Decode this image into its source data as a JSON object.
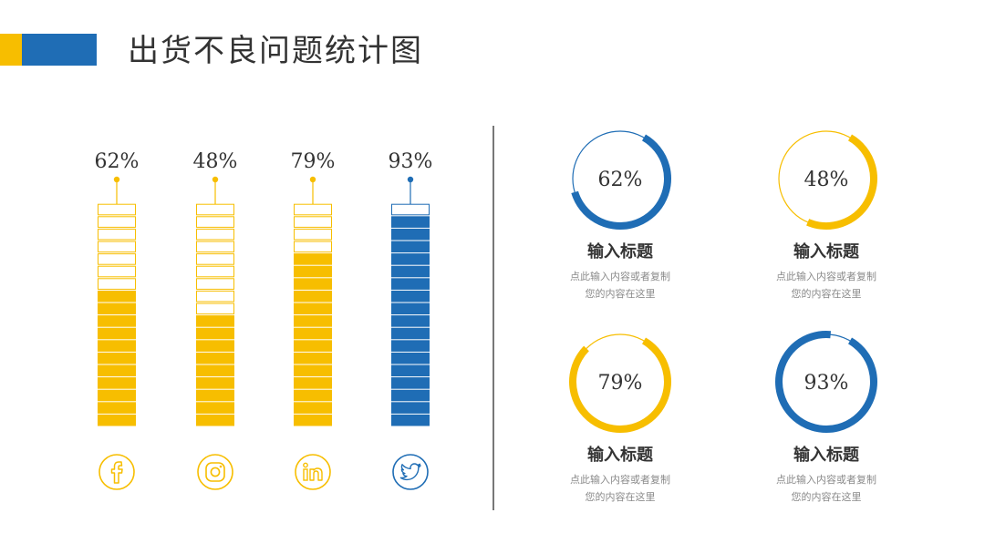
{
  "title": "出货不良问题统计图",
  "colors": {
    "yellow": "#F7BE00",
    "blue": "#1F6DB5"
  },
  "chart_data": {
    "type": "bar",
    "categories": [
      "facebook",
      "instagram",
      "linkedin",
      "twitter"
    ],
    "values": [
      62,
      48,
      79,
      93
    ],
    "labels": [
      "62%",
      "48%",
      "79%",
      "93%"
    ],
    "unit": "%",
    "ylim": [
      0,
      100
    ],
    "segments_per_bar": 18,
    "bar_colors": [
      "#F7BE00",
      "#F7BE00",
      "#F7BE00",
      "#1F6DB5"
    ],
    "icons": [
      "facebook-icon",
      "instagram-icon",
      "linkedin-icon",
      "twitter-icon"
    ]
  },
  "cards": [
    {
      "value": 62,
      "label": "62%",
      "color": "#1F6DB5",
      "title": "输入标题",
      "desc_line1": "点此输入内容或者复制",
      "desc_line2": "您的内容在这里"
    },
    {
      "value": 48,
      "label": "48%",
      "color": "#F7BE00",
      "title": "输入标题",
      "desc_line1": "点此输入内容或者复制",
      "desc_line2": "您的内容在这里"
    },
    {
      "value": 79,
      "label": "79%",
      "color": "#F7BE00",
      "title": "输入标题",
      "desc_line1": "点此输入内容或者复制",
      "desc_line2": "您的内容在这里"
    },
    {
      "value": 93,
      "label": "93%",
      "color": "#1F6DB5",
      "title": "输入标题",
      "desc_line1": "点此输入内容或者复制",
      "desc_line2": "您的内容在这里"
    }
  ]
}
